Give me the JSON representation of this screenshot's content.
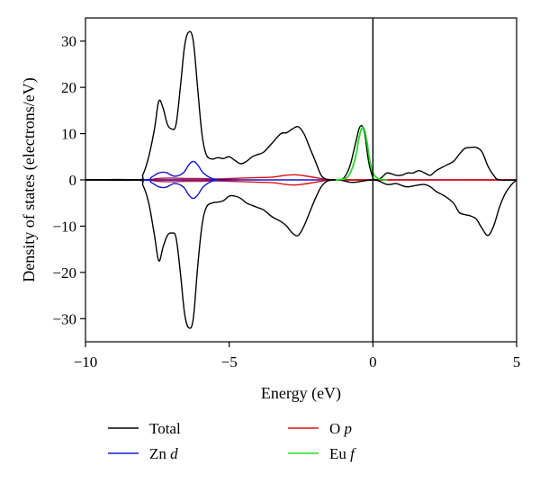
{
  "chart_data": {
    "type": "line",
    "title": "",
    "xlabel": "Energy (eV)",
    "ylabel": "Density of states (electrons/eV)",
    "xlim": [
      -10,
      5
    ],
    "ylim": [
      -35,
      35
    ],
    "xticks": [
      -10,
      -5,
      0,
      5
    ],
    "yticks": [
      30,
      20,
      10,
      0,
      -10,
      -20,
      -30
    ],
    "grid": false,
    "legend_position": "below",
    "fermi_level_line_x": 0,
    "series": [
      {
        "name": "Total",
        "color": "#000000",
        "x": [
          -10,
          -8.2,
          -8.0,
          -7.8,
          -7.6,
          -7.45,
          -7.3,
          -7.15,
          -7.0,
          -6.85,
          -6.7,
          -6.55,
          -6.4,
          -6.25,
          -6.1,
          -5.95,
          -5.8,
          -5.6,
          -5.4,
          -5.2,
          -5.0,
          -4.8,
          -4.6,
          -4.4,
          -4.2,
          -4.0,
          -3.8,
          -3.5,
          -3.2,
          -3.0,
          -2.8,
          -2.6,
          -2.4,
          -2.2,
          -2.0,
          -1.8,
          -1.6,
          -1.4,
          -1.2,
          -1.0,
          -0.8,
          -0.6,
          -0.45,
          -0.3,
          -0.15,
          0,
          0.1,
          0.3,
          0.5,
          0.8,
          1.0,
          1.2,
          1.4,
          1.6,
          1.8,
          2.0,
          2.2,
          2.5,
          2.8,
          3.0,
          3.2,
          3.4,
          3.6,
          3.8,
          4.0,
          4.2,
          4.4,
          5.0
        ],
        "y": [
          0,
          0,
          1.2,
          5,
          11,
          17,
          15.5,
          12,
          11,
          12,
          20,
          29,
          32,
          30,
          20,
          10,
          5.5,
          4.5,
          4.8,
          4.6,
          5.0,
          4.2,
          3.5,
          4.0,
          5.0,
          5.5,
          6.0,
          8.0,
          10.0,
          10.2,
          11.0,
          11.5,
          10.0,
          7.0,
          4.0,
          1.0,
          0.1,
          0,
          0,
          0.5,
          3.0,
          8.0,
          11.5,
          10.5,
          4.0,
          0.5,
          0,
          0.5,
          1.5,
          1.0,
          1.0,
          1.5,
          1.5,
          2.0,
          1.5,
          1.0,
          2.0,
          3.0,
          4.0,
          5.5,
          6.8,
          7.0,
          7.0,
          6.0,
          3.0,
          1.0,
          0,
          0
        ]
      },
      {
        "name": "Total (spin down)",
        "color": "#000000",
        "x": [
          -10,
          -8.2,
          -8.0,
          -7.8,
          -7.6,
          -7.45,
          -7.3,
          -7.15,
          -7.0,
          -6.85,
          -6.7,
          -6.55,
          -6.4,
          -6.25,
          -6.1,
          -5.95,
          -5.8,
          -5.6,
          -5.4,
          -5.2,
          -5.0,
          -4.8,
          -4.6,
          -4.4,
          -4.2,
          -4.0,
          -3.8,
          -3.5,
          -3.2,
          -3.0,
          -2.8,
          -2.6,
          -2.4,
          -2.2,
          -2.0,
          -1.8,
          -1.6,
          -1.4,
          -1.2,
          -1.0,
          -0.8,
          -0.6,
          -0.4,
          -0.2,
          0,
          0.2,
          0.5,
          0.8,
          1.0,
          1.2,
          1.5,
          1.8,
          2.0,
          2.2,
          2.5,
          2.8,
          3.0,
          3.2,
          3.4,
          3.6,
          3.8,
          4.0,
          4.2,
          4.4,
          4.6,
          4.8,
          5.0
        ],
        "y": [
          0,
          0,
          -1.2,
          -5,
          -12,
          -17.5,
          -14.5,
          -12,
          -11.5,
          -12.5,
          -20,
          -29,
          -32,
          -30,
          -19,
          -10,
          -6,
          -5,
          -4.8,
          -4.5,
          -3.5,
          -3.5,
          -4.0,
          -5.0,
          -5.5,
          -6.0,
          -6.5,
          -8.0,
          -9.0,
          -10.0,
          -11.5,
          -12.0,
          -10.0,
          -7.0,
          -4.0,
          -1.5,
          -0.3,
          0,
          0,
          -0.2,
          -0.5,
          -0.5,
          -0.3,
          -0.1,
          0,
          -0.2,
          -1.0,
          -0.8,
          -1.2,
          -1.5,
          -1.2,
          -1.0,
          -1.5,
          -2.5,
          -3.5,
          -5.0,
          -7.0,
          -7.5,
          -7.8,
          -8.5,
          -10.5,
          -12.0,
          -10.0,
          -6.0,
          -3.0,
          -1.2,
          0
        ]
      },
      {
        "name": "Zn d",
        "color": "#1515d0",
        "x": [
          -10,
          -8.0,
          -7.7,
          -7.45,
          -7.2,
          -6.9,
          -6.6,
          -6.4,
          -6.25,
          -6.1,
          -5.9,
          -5.6,
          -5.3,
          -5.0,
          -10.0
        ],
        "y": [
          0,
          0,
          0.6,
          1.5,
          1.6,
          0.8,
          1.5,
          3.3,
          4.0,
          3.3,
          1.5,
          0.3,
          0.05,
          0,
          0
        ]
      },
      {
        "name": "Zn d (spin down)",
        "color": "#1515d0",
        "x": [
          -10,
          -8.0,
          -7.7,
          -7.45,
          -7.2,
          -6.9,
          -6.6,
          -6.4,
          -6.25,
          -6.1,
          -5.9,
          -5.6,
          -5.3,
          -5.0
        ],
        "y": [
          0,
          0,
          -0.6,
          -1.5,
          -1.6,
          -0.8,
          -1.5,
          -3.3,
          -4.0,
          -3.3,
          -1.5,
          -0.3,
          -0.05,
          0
        ]
      },
      {
        "name": "O p",
        "color": "#e01010",
        "x": [
          -10,
          -8.0,
          -7.5,
          -7.0,
          -6.5,
          -6.0,
          -5.5,
          -5.0,
          -4.5,
          -4.0,
          -3.5,
          -3.0,
          -2.7,
          -2.4,
          -2.0,
          -1.7,
          -1.4,
          -1.0,
          5.0
        ],
        "y": [
          0,
          0,
          0.3,
          0.4,
          0.3,
          0.3,
          0.2,
          0.3,
          0.4,
          0.5,
          0.6,
          1.0,
          1.1,
          0.9,
          0.5,
          0.2,
          0.05,
          0,
          0
        ]
      },
      {
        "name": "O p (spin down)",
        "color": "#e01010",
        "x": [
          -10,
          -8.0,
          -7.5,
          -7.0,
          -6.5,
          -6.0,
          -5.5,
          -5.0,
          -4.5,
          -4.0,
          -3.5,
          -3.0,
          -2.7,
          -2.4,
          -2.0,
          -1.7,
          -1.4,
          -1.0,
          5.0
        ],
        "y": [
          0,
          0,
          -0.3,
          -0.4,
          -0.3,
          -0.3,
          -0.2,
          -0.3,
          -0.4,
          -0.5,
          -0.6,
          -1.0,
          -1.1,
          -0.9,
          -0.5,
          -0.2,
          -0.05,
          0,
          0
        ]
      },
      {
        "name": "Eu f",
        "color": "#22dd22",
        "x": [
          -1.3,
          -1.1,
          -0.9,
          -0.75,
          -0.6,
          -0.5,
          -0.4,
          -0.3,
          -0.2,
          -0.1,
          0.0,
          0.15,
          0.3,
          0.5
        ],
        "y": [
          0,
          0.1,
          0.5,
          2.0,
          5.0,
          8.5,
          11.0,
          11.0,
          8.0,
          4.0,
          1.5,
          0.4,
          0.1,
          0
        ]
      }
    ]
  },
  "legend": [
    {
      "key": "total",
      "label_main": "Total",
      "label_italic": "",
      "color": "#000000"
    },
    {
      "key": "o-p",
      "label_main": "O ",
      "label_italic": "p",
      "color": "#e01010"
    },
    {
      "key": "zn-d",
      "label_main": "Zn ",
      "label_italic": "d",
      "color": "#1515d0"
    },
    {
      "key": "eu-f",
      "label_main": "Eu ",
      "label_italic": "f",
      "color": "#22dd22"
    }
  ]
}
